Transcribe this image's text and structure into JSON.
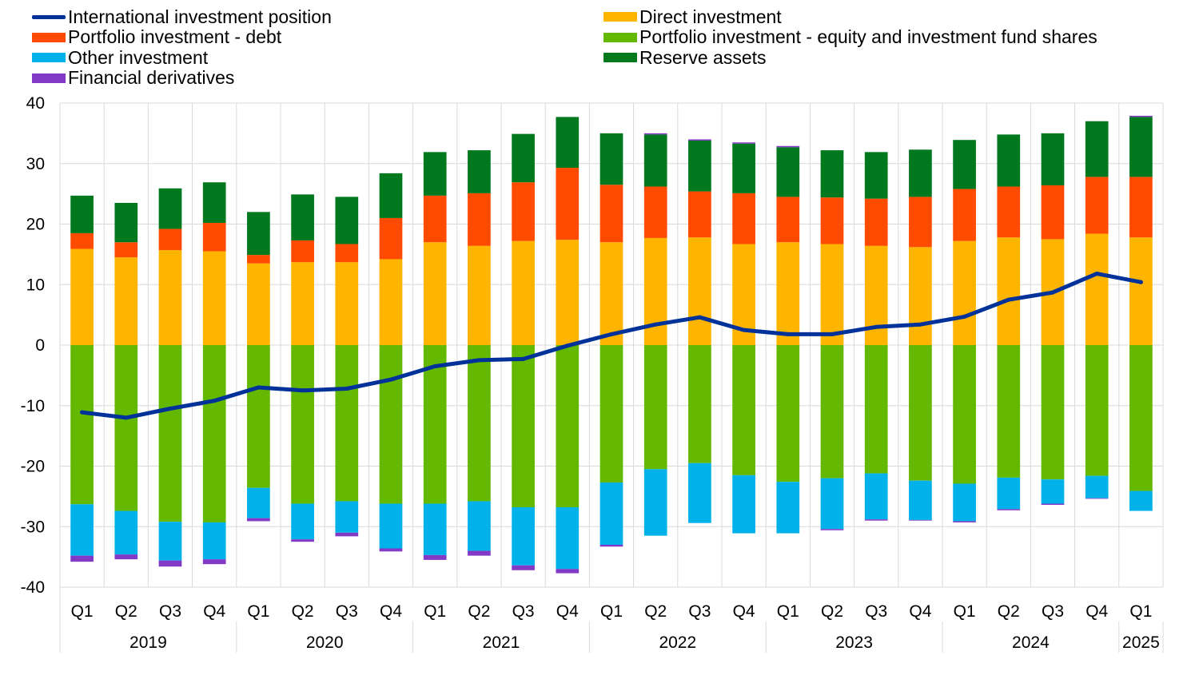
{
  "chart_data": {
    "type": "bar",
    "stacked": true,
    "categories": [
      "Q1",
      "Q2",
      "Q3",
      "Q4",
      "Q1",
      "Q2",
      "Q3",
      "Q4",
      "Q1",
      "Q2",
      "Q3",
      "Q4",
      "Q1",
      "Q2",
      "Q3",
      "Q4",
      "Q1",
      "Q2",
      "Q3",
      "Q4",
      "Q1",
      "Q2",
      "Q3",
      "Q4",
      "Q1"
    ],
    "years": [
      {
        "label": "2019",
        "span": 4
      },
      {
        "label": "2020",
        "span": 4
      },
      {
        "label": "2021",
        "span": 4
      },
      {
        "label": "2022",
        "span": 4
      },
      {
        "label": "2023",
        "span": 4
      },
      {
        "label": "2024",
        "span": 4
      },
      {
        "label": "2025",
        "span": 1
      }
    ],
    "ylim": [
      -40,
      40
    ],
    "yticks": [
      40,
      30,
      20,
      10,
      0,
      -10,
      -20,
      -30,
      -40
    ],
    "grid": true,
    "legend_position": "top",
    "series": [
      {
        "name": "Direct investment",
        "color": "#FFB400",
        "values": [
          15.9,
          14.5,
          15.7,
          15.5,
          13.5,
          13.7,
          13.7,
          14.2,
          17.0,
          16.4,
          17.2,
          17.4,
          17.0,
          17.7,
          17.8,
          16.7,
          17.0,
          16.7,
          16.4,
          16.2,
          17.2,
          17.8,
          17.5,
          18.4,
          17.8
        ]
      },
      {
        "name": "Portfolio investment - debt",
        "color": "#FF4B00",
        "values": [
          2.6,
          2.5,
          3.5,
          4.7,
          1.4,
          3.6,
          3.0,
          6.8,
          7.7,
          8.7,
          9.7,
          11.9,
          9.5,
          8.5,
          7.6,
          8.4,
          7.5,
          7.7,
          7.8,
          8.3,
          8.6,
          8.4,
          8.9,
          9.4,
          10.0
        ]
      },
      {
        "name": "Reserve assets",
        "color": "#00781E",
        "values": [
          6.2,
          6.5,
          6.7,
          6.7,
          7.1,
          7.6,
          7.8,
          7.4,
          7.2,
          7.1,
          8.0,
          8.4,
          8.5,
          8.6,
          8.4,
          8.2,
          8.2,
          7.8,
          7.7,
          7.8,
          8.1,
          8.6,
          8.6,
          9.2,
          9.9
        ]
      },
      {
        "name": "Financial derivatives",
        "color": "#8139C6",
        "values": [
          0,
          0,
          0,
          0,
          0,
          0,
          0,
          0,
          0,
          0,
          0,
          0,
          0,
          0.2,
          0.2,
          0.2,
          0.2,
          0,
          0,
          0,
          0,
          0,
          0,
          0,
          0.2
        ]
      },
      {
        "name": "Portfolio investment - equity and investment fund shares",
        "color": "#65B800",
        "values": [
          -26.3,
          -27.4,
          -29.2,
          -29.3,
          -23.6,
          -26.2,
          -25.8,
          -26.2,
          -26.2,
          -25.8,
          -26.8,
          -26.8,
          -22.7,
          -20.5,
          -19.5,
          -21.5,
          -22.6,
          -22.0,
          -21.2,
          -22.4,
          -22.9,
          -21.9,
          -22.2,
          -21.6,
          -24.1
        ]
      },
      {
        "name": "Other investment",
        "color": "#00B1EA",
        "values": [
          -8.5,
          -7.2,
          -6.4,
          -6.1,
          -5.0,
          -5.9,
          -5.2,
          -7.4,
          -8.5,
          -8.2,
          -9.6,
          -10.2,
          -10.3,
          -11.0,
          -9.9,
          -9.6,
          -8.5,
          -8.4,
          -7.6,
          -6.5,
          -6.2,
          -5.2,
          -4.0,
          -3.7,
          -3.3
        ]
      },
      {
        "name": "Financial derivatives",
        "color": "#8139C6",
        "values": [
          -1.0,
          -0.8,
          -1.0,
          -0.8,
          -0.5,
          -0.4,
          -0.6,
          -0.5,
          -0.8,
          -0.8,
          -0.8,
          -0.7,
          -0.3,
          0,
          0,
          0,
          0,
          -0.2,
          -0.2,
          -0.1,
          -0.2,
          -0.2,
          -0.2,
          -0.1,
          0
        ]
      },
      {
        "name": "International investment position",
        "type": "line",
        "color": "#003299",
        "values": [
          -11.1,
          -12.0,
          -10.5,
          -9.2,
          -7.0,
          -7.5,
          -7.2,
          -5.7,
          -3.5,
          -2.5,
          -2.3,
          -0.1,
          1.8,
          3.4,
          4.6,
          2.5,
          1.8,
          1.8,
          3.0,
          3.4,
          4.7,
          7.5,
          8.7,
          11.8,
          10.4
        ]
      }
    ],
    "legend": [
      {
        "name": "International investment position",
        "color": "#003299",
        "kind": "line"
      },
      {
        "name": "Direct investment",
        "color": "#FFB400",
        "kind": "box"
      },
      {
        "name": "Portfolio investment - debt",
        "color": "#FF4B00",
        "kind": "box"
      },
      {
        "name": "Portfolio investment - equity and investment fund shares",
        "color": "#65B800",
        "kind": "box"
      },
      {
        "name": "Other investment",
        "color": "#00B1EA",
        "kind": "box"
      },
      {
        "name": "Reserve assets",
        "color": "#00781E",
        "kind": "box"
      },
      {
        "name": "Financial derivatives",
        "color": "#8139C6",
        "kind": "box"
      }
    ]
  }
}
